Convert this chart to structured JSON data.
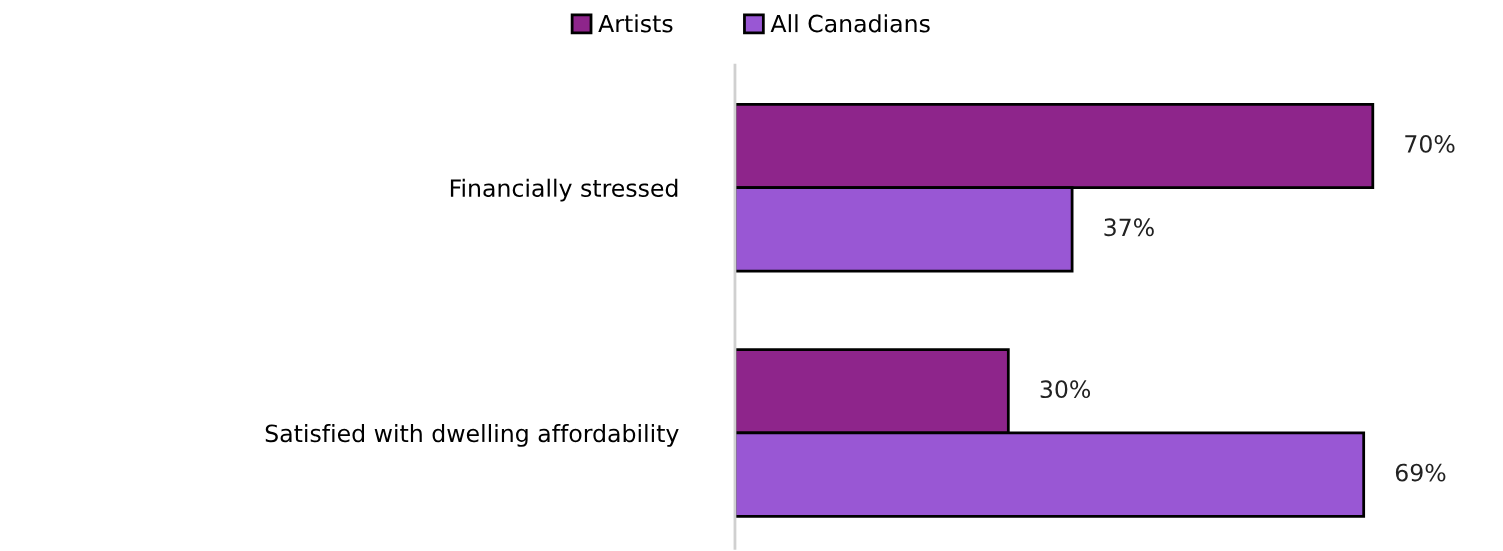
{
  "chart_data": {
    "type": "bar",
    "orientation": "horizontal",
    "categories": [
      "Financially stressed",
      "Satisfied with dwelling affordability"
    ],
    "series": [
      {
        "name": "Artists",
        "color": "#8e258b",
        "values": [
          70,
          30
        ],
        "value_labels": [
          "70%",
          "30%"
        ]
      },
      {
        "name": "All Canadians",
        "color": "#9957d4",
        "values": [
          37,
          69
        ],
        "value_labels": [
          "37%",
          "69%"
        ]
      }
    ],
    "tick_labels": "y",
    "grid": false,
    "legend": "top"
  }
}
